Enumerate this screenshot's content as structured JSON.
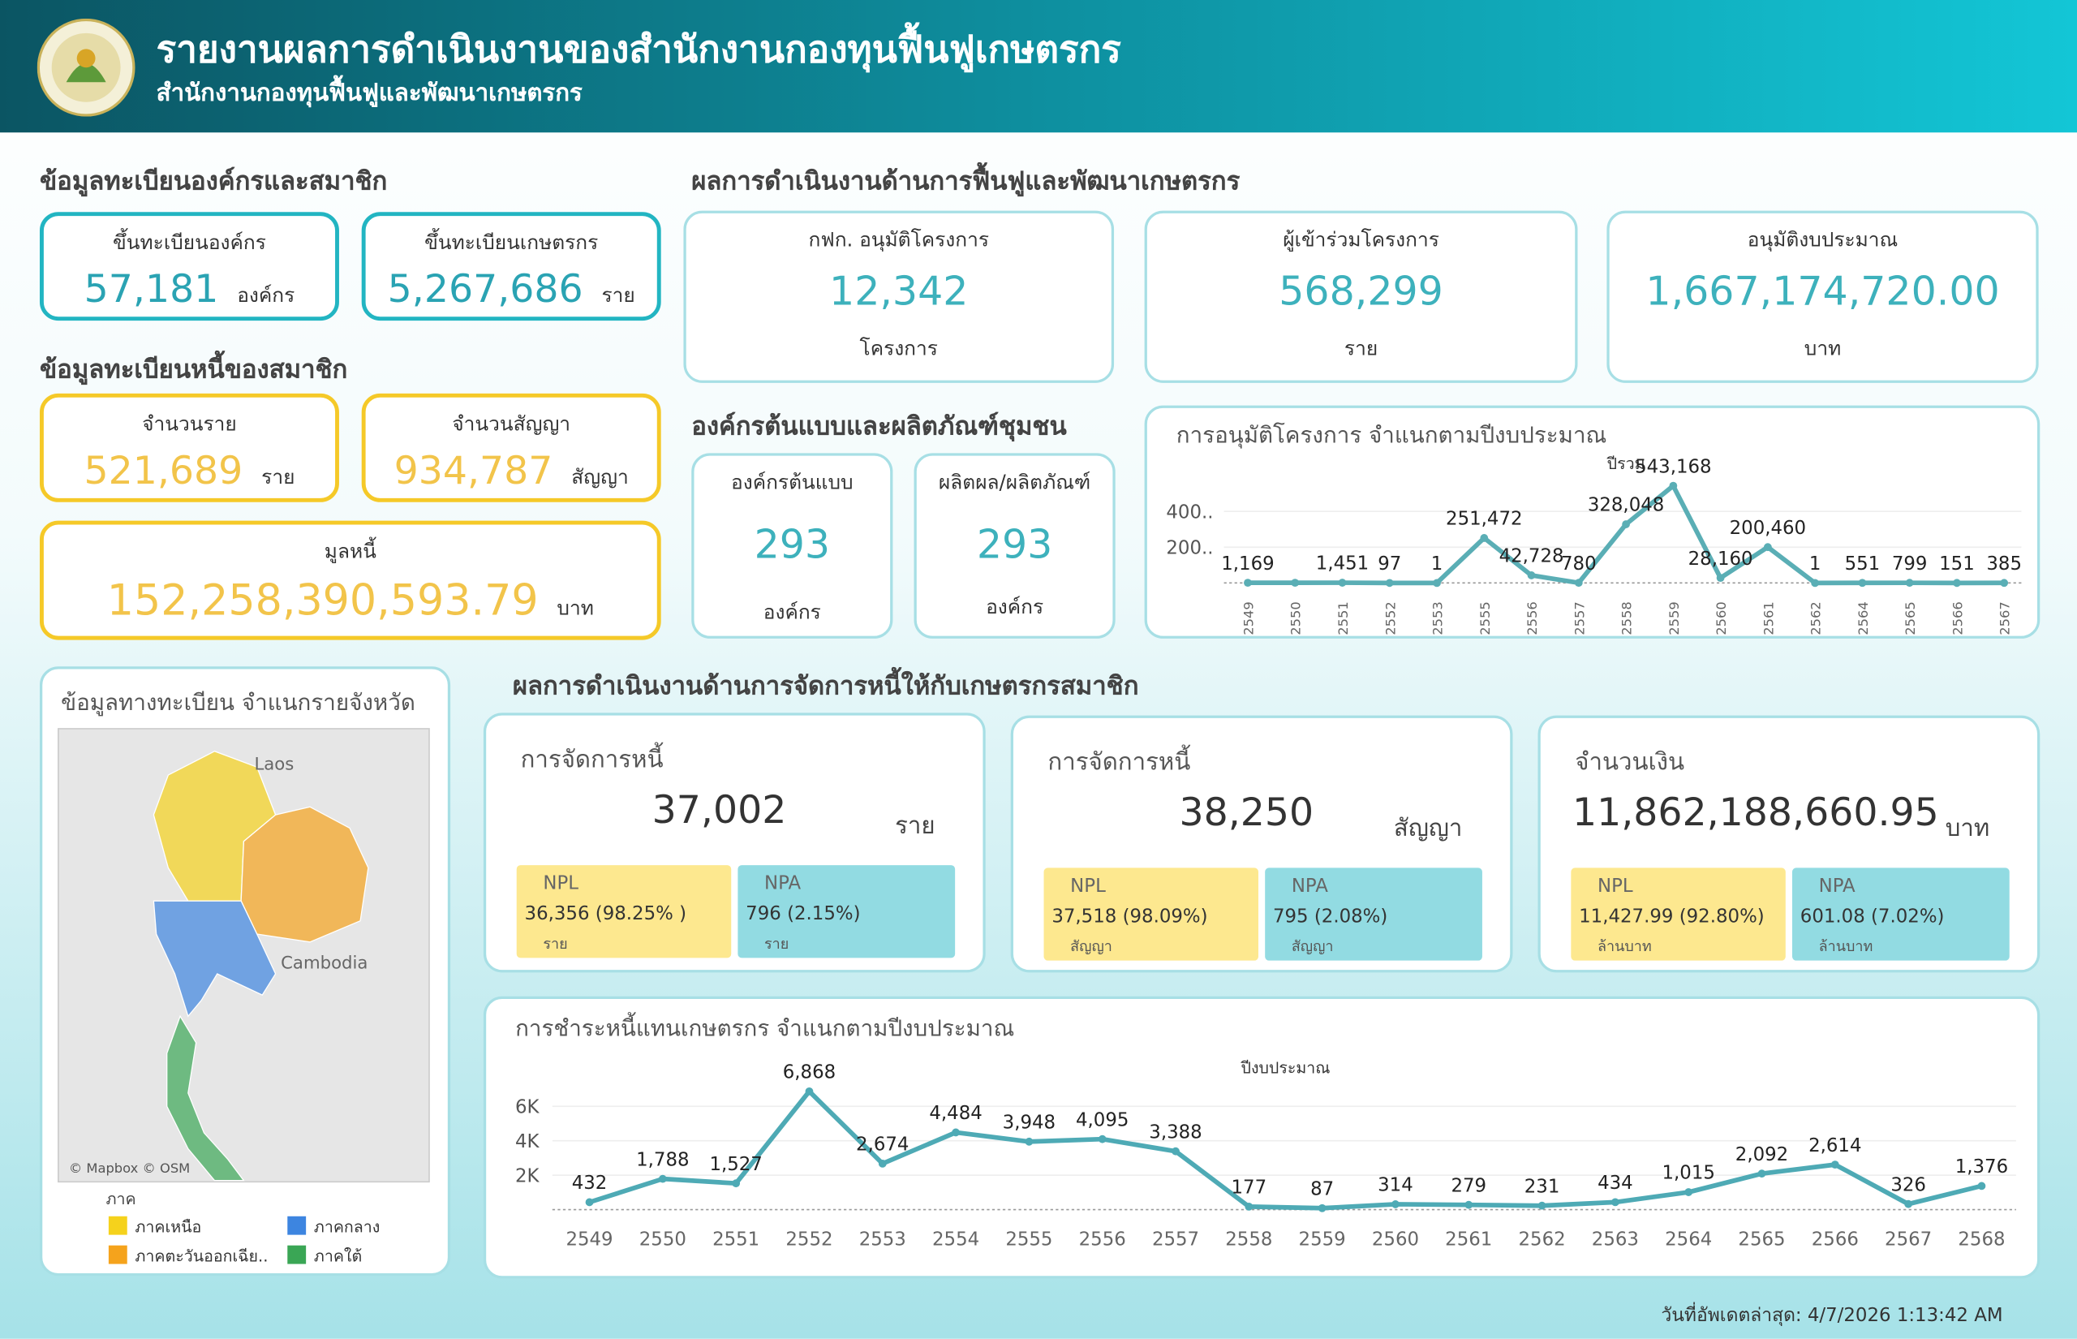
{
  "header": {
    "title": "รายงานผลการดำเนินงานของสำนักงานกองทุนฟื้นฟูเกษตรกร",
    "subtitle": "สำนักงานกองทุนฟื้นฟูและพัฒนาเกษตรกร"
  },
  "registration": {
    "title": "ข้อมูลทะเบียนองค์กรและสมาชิก",
    "cards": [
      {
        "label": "ขึ้นทะเบียนองค์กร",
        "value": "57,181",
        "unit": "องค์กร"
      },
      {
        "label": "ขึ้นทะเบียนเกษตรกร",
        "value": "5,267,686",
        "unit": "ราย"
      }
    ]
  },
  "debt_registration": {
    "title": "ข้อมูลทะเบียนหนี้ของสมาชิก",
    "cards": [
      {
        "label": "จำนวนราย",
        "value": "521,689",
        "unit": "ราย"
      },
      {
        "label": "จำนวนสัญญา",
        "value": "934,787",
        "unit": "สัญญา"
      },
      {
        "label": "มูลหนี้",
        "value": "152,258,390,593.79",
        "unit": "บาท"
      }
    ]
  },
  "rehab": {
    "title": "ผลการดำเนินงานด้านการฟื้นฟูและพัฒนาเกษตรกร",
    "cards": [
      {
        "label": "กฟก. อนุมัติโครงการ",
        "value": "12,342",
        "unit": "โครงการ"
      },
      {
        "label": "ผู้เข้าร่วมโครงการ",
        "value": "568,299",
        "unit": "ราย"
      },
      {
        "label": "อนุมัติงบประมาณ",
        "value": "1,667,174,720.00",
        "unit": "บาท"
      }
    ]
  },
  "community": {
    "title": "องค์กรต้นแบบและผลิตภัณฑ์ชุมชน",
    "cards": [
      {
        "label": "องค์กรต้นแบบ",
        "value": "293",
        "unit": "องค์กร"
      },
      {
        "label": "ผลิตผล/ผลิตภัณฑ์",
        "value": "293",
        "unit": "องค์กร"
      }
    ]
  },
  "map": {
    "title": "ข้อมูลทางทะเบียน จำแนกรายจังหวัด",
    "labels": [
      "Laos",
      "Cambodia"
    ],
    "credit": "© Mapbox © OSM",
    "legend_title": "ภาค",
    "legend": [
      {
        "name": "ภาคเหนือ",
        "color": "#f5d21c"
      },
      {
        "name": "ภาคกลาง",
        "color": "#3d85e0"
      },
      {
        "name": "ภาคตะวันออกเฉีย..",
        "color": "#f5a31c"
      },
      {
        "name": "ภาคใต้",
        "color": "#3aa655"
      }
    ]
  },
  "debt_mgmt": {
    "title": "ผลการดำเนินงานด้านการจัดการหนี้ให้กับเกษตรกรสมาชิก",
    "cards": [
      {
        "label": "การจัดการหนี้",
        "value": "37,002",
        "unit": "ราย",
        "npl": {
          "label": "NPL",
          "value": "36,356 (98.25% )",
          "unit": "ราย"
        },
        "npa": {
          "label": "NPA",
          "value": "796 (2.15%)",
          "unit": "ราย"
        }
      },
      {
        "label": "การจัดการหนี้",
        "value": "38,250",
        "unit": "สัญญา",
        "npl": {
          "label": "NPL",
          "value": "37,518 (98.09%)",
          "unit": "สัญญา"
        },
        "npa": {
          "label": "NPA",
          "value": "795 (2.08%)",
          "unit": "สัญญา"
        }
      },
      {
        "label": "จำนวนเงิน",
        "value": "11,862,188,660.95",
        "unit": "บาท",
        "npl": {
          "label": "NPL",
          "value": "11,427.99 (92.80%)",
          "unit": "ล้านบาท"
        },
        "npa": {
          "label": "NPA",
          "value": "601.08 (7.02%)",
          "unit": "ล้านบาท"
        }
      }
    ]
  },
  "footer": "วันที่อัพเดตล่าสุด: 4/7/2026 1:13:42 AM",
  "chart_data": [
    {
      "type": "line",
      "title": "การอนุมัติโครงการ จำแนกตามปีงบประมาณ",
      "x_label": "ปีรวม",
      "color": "#5aaeb5",
      "categories": [
        "2549",
        "2550",
        "2551",
        "2552",
        "2553",
        "2555",
        "2556",
        "2557",
        "2558",
        "2559",
        "2560",
        "2561",
        "2562",
        "2564",
        "2565",
        "2566",
        "2567"
      ],
      "values": [
        1169,
        1000,
        1451,
        97,
        1,
        251472,
        42728,
        780,
        328048,
        543168,
        28160,
        200460,
        1,
        551,
        799,
        151,
        385
      ],
      "value_labels": [
        "1,169",
        null,
        "1,451",
        "97",
        "1",
        "251,472",
        "42,728",
        "780",
        "328,048",
        "543,168",
        "28,160",
        "200,460",
        "1",
        "551",
        "799",
        "151",
        "385"
      ],
      "ylim": [
        0,
        600000
      ],
      "yticks": [
        {
          "value": 200000,
          "label": "200.."
        },
        {
          "value": 400000,
          "label": "400.."
        }
      ],
      "grid": true,
      "rotate_x_labels": true
    },
    {
      "type": "line",
      "title": "การชำระหนี้แทนเกษตรกร จำแนกตามปีงบประมาณ",
      "x_label": "ปีงบประมาณ",
      "color": "#4eaab5",
      "categories": [
        "2549",
        "2550",
        "2551",
        "2552",
        "2553",
        "2554",
        "2555",
        "2556",
        "2557",
        "2558",
        "2559",
        "2560",
        "2561",
        "2562",
        "2563",
        "2564",
        "2565",
        "2566",
        "2567",
        "2568"
      ],
      "values": [
        432,
        1788,
        1527,
        6868,
        2674,
        4484,
        3948,
        4095,
        3388,
        177,
        87,
        314,
        279,
        231,
        434,
        1015,
        2092,
        2614,
        326,
        1376
      ],
      "value_labels": [
        "432",
        "1,788",
        "1,527",
        "6,868",
        "2,674",
        "4,484",
        "3,948",
        "4,095",
        "3,388",
        "177",
        "87",
        "314",
        "279",
        "231",
        "434",
        "1,015",
        "2,092",
        "2,614",
        "326",
        "1,376"
      ],
      "ylim": [
        0,
        7000
      ],
      "yticks": [
        {
          "value": 2000,
          "label": "2K"
        },
        {
          "value": 4000,
          "label": "4K"
        },
        {
          "value": 6000,
          "label": "6K"
        }
      ],
      "grid": true,
      "rotate_x_labels": false
    }
  ]
}
